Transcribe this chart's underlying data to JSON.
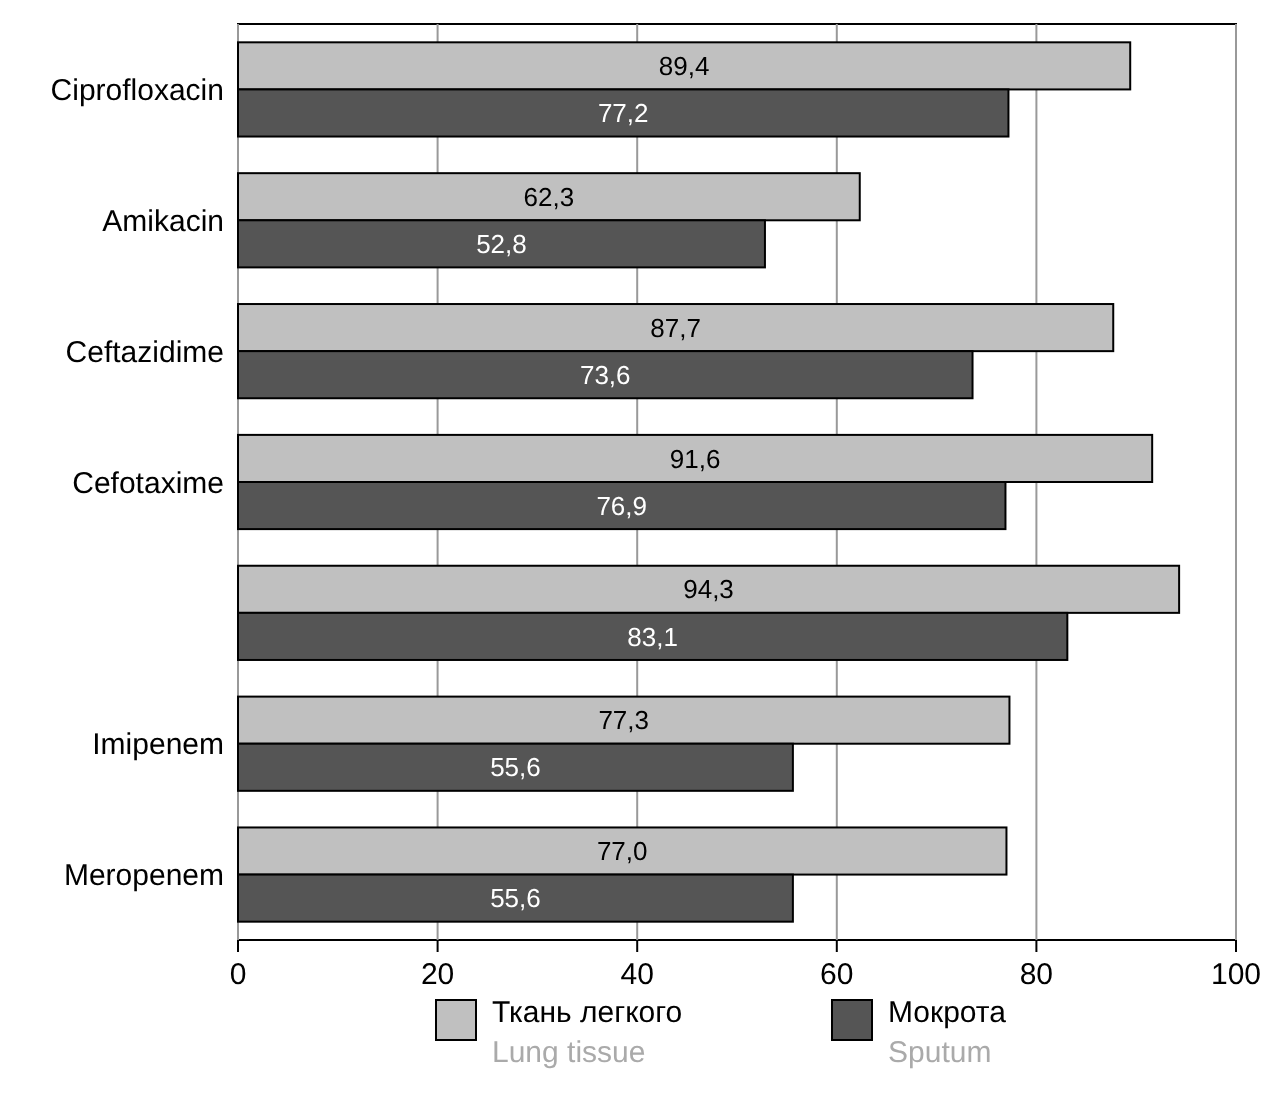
{
  "chart_data": {
    "type": "bar",
    "orientation": "horizontal",
    "categories": [
      "Ciprofloxacin",
      "Amikacin",
      "Ceftazidime",
      "Cefotaxime",
      null,
      "Imipenem",
      "Meropenem"
    ],
    "series": [
      {
        "name": "Ткань легкого\nLung tissue",
        "color": "#c0c0c0",
        "values": [
          89.4,
          62.3,
          87.7,
          91.6,
          94.3,
          77.3,
          77.0
        ],
        "value_labels": [
          "89,4",
          "62,3",
          "87,7",
          "91,6",
          "94,3",
          "77,3",
          "77,0"
        ]
      },
      {
        "name": "Мокрота\nSputum",
        "color": "#555555",
        "values": [
          77.2,
          52.8,
          73.6,
          76.9,
          83.1,
          55.6,
          55.6
        ],
        "value_labels": [
          "77,2",
          "52,8",
          "73,6",
          "76,9",
          "83,1",
          "55,6",
          "55,6"
        ]
      }
    ],
    "xlim": [
      0,
      100
    ],
    "xticks": [
      0,
      20,
      40,
      60,
      80,
      100
    ],
    "grid": "x",
    "legend": "bottom"
  }
}
